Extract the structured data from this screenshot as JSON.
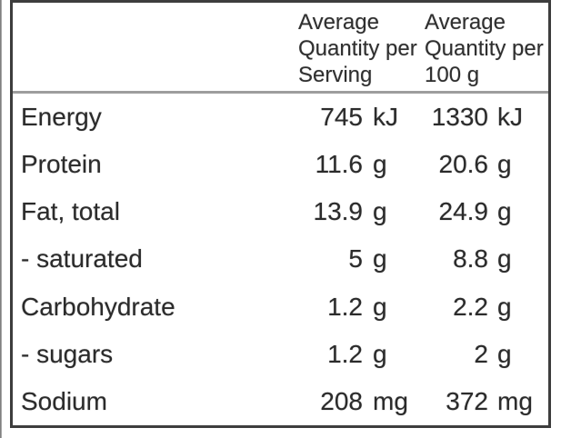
{
  "panel": {
    "header": {
      "serving_lines": [
        "Average",
        "Quantity per",
        "Serving"
      ],
      "per100g_lines": [
        "Average",
        "Quantity per",
        "100 g"
      ]
    },
    "rows": [
      {
        "label": "Energy",
        "serving_value": "745",
        "serving_unit": "kJ",
        "per100g_value": "1330",
        "per100g_unit": "kJ"
      },
      {
        "label": "Protein",
        "serving_value": "11.6",
        "serving_unit": "g",
        "per100g_value": "20.6",
        "per100g_unit": "g"
      },
      {
        "label": "Fat, total",
        "serving_value": "13.9",
        "serving_unit": "g",
        "per100g_value": "24.9",
        "per100g_unit": "g"
      },
      {
        "label": "- saturated",
        "serving_value": "5",
        "serving_unit": "g",
        "per100g_value": "8.8",
        "per100g_unit": "g"
      },
      {
        "label": "Carbohydrate",
        "serving_value": "1.2",
        "serving_unit": "g",
        "per100g_value": "2.2",
        "per100g_unit": "g"
      },
      {
        "label": "- sugars",
        "serving_value": "1.2",
        "serving_unit": "g",
        "per100g_value": "2",
        "per100g_unit": "g"
      },
      {
        "label": "Sodium",
        "serving_value": "208",
        "serving_unit": "mg",
        "per100g_value": "372",
        "per100g_unit": "mg"
      }
    ],
    "colors": {
      "border": "#3d3d3d",
      "separator": "#9d9d9d",
      "text": "#2b2b2b",
      "background": "#ffffff"
    }
  }
}
